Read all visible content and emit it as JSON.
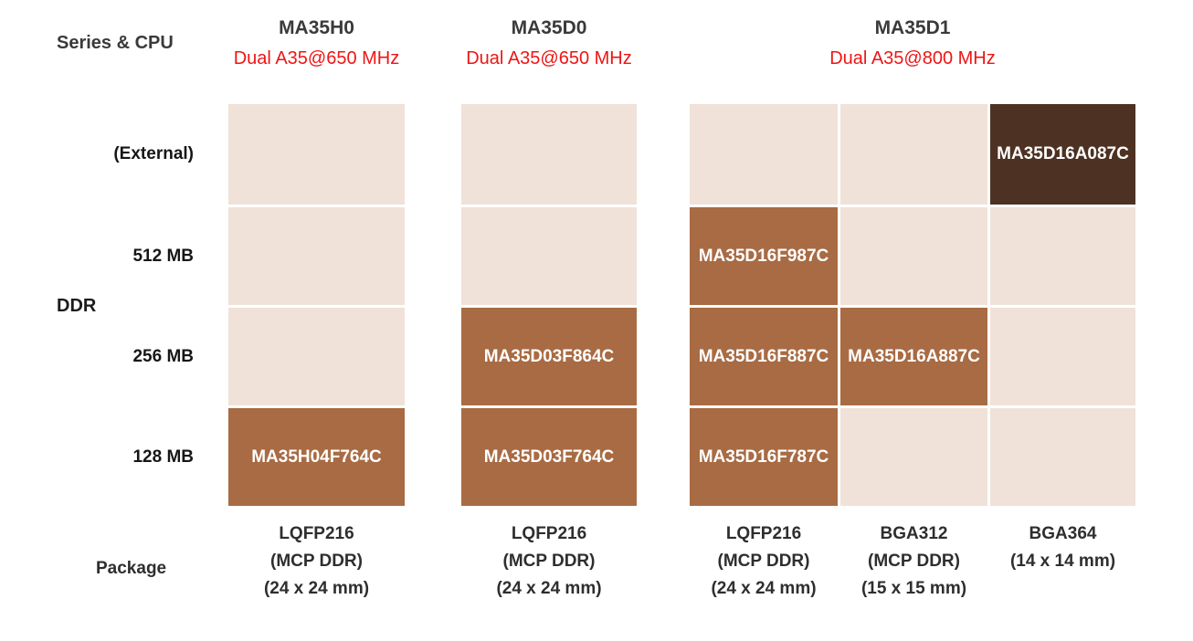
{
  "labels": {
    "series_cpu": "Series & CPU",
    "ddr": "DDR",
    "package": "Package",
    "rows": [
      "(External)",
      "512 MB",
      "256 MB",
      "128 MB"
    ]
  },
  "colors": {
    "cell_empty": "#f0e2d8",
    "cell_filled": "#a86b43",
    "cell_external_dark": "#4d3122",
    "cpu_accent_red": "#ee1515",
    "cell_text": "#ffffff",
    "label_text": "#2e2e2e"
  },
  "series": [
    {
      "name": "MA35H0",
      "cpu": "Dual A35@650 MHz"
    },
    {
      "name": "MA35D0",
      "cpu": "Dual A35@650 MHz"
    },
    {
      "name": "MA35D1",
      "cpu": "Dual A35@800 MHz"
    }
  ],
  "columns": [
    {
      "series": "MA35H0",
      "package": {
        "line1": "LQFP216",
        "line2": "(MCP DDR)",
        "line3": "(24 x 24 mm)"
      },
      "cells": [
        {
          "ddr": "(External)",
          "part": "",
          "state": "empty"
        },
        {
          "ddr": "512 MB",
          "part": "",
          "state": "empty"
        },
        {
          "ddr": "256 MB",
          "part": "",
          "state": "empty"
        },
        {
          "ddr": "128 MB",
          "part": "MA35H04F764C",
          "state": "filled"
        }
      ]
    },
    {
      "series": "MA35D0",
      "package": {
        "line1": "LQFP216",
        "line2": "(MCP DDR)",
        "line3": "(24 x 24 mm)"
      },
      "cells": [
        {
          "ddr": "(External)",
          "part": "",
          "state": "empty"
        },
        {
          "ddr": "512 MB",
          "part": "",
          "state": "empty"
        },
        {
          "ddr": "256 MB",
          "part": "MA35D03F864C",
          "state": "filled"
        },
        {
          "ddr": "128 MB",
          "part": "MA35D03F764C",
          "state": "filled"
        }
      ]
    },
    {
      "series": "MA35D1",
      "package": {
        "line1": "LQFP216",
        "line2": "(MCP DDR)",
        "line3": "(24 x 24 mm)"
      },
      "cells": [
        {
          "ddr": "(External)",
          "part": "",
          "state": "empty"
        },
        {
          "ddr": "512 MB",
          "part": "MA35D16F987C",
          "state": "filled"
        },
        {
          "ddr": "256 MB",
          "part": "MA35D16F887C",
          "state": "filled"
        },
        {
          "ddr": "128 MB",
          "part": "MA35D16F787C",
          "state": "filled"
        }
      ]
    },
    {
      "series": "MA35D1",
      "package": {
        "line1": "BGA312",
        "line2": "(MCP DDR)",
        "line3": "(15 x 15 mm)"
      },
      "cells": [
        {
          "ddr": "(External)",
          "part": "",
          "state": "empty"
        },
        {
          "ddr": "512 MB",
          "part": "",
          "state": "empty"
        },
        {
          "ddr": "256 MB",
          "part": "MA35D16A887C",
          "state": "filled"
        },
        {
          "ddr": "128 MB",
          "part": "",
          "state": "empty"
        }
      ]
    },
    {
      "series": "MA35D1",
      "package": {
        "line1": "BGA364",
        "line2": "(14 x 14 mm)",
        "line3": ""
      },
      "cells": [
        {
          "ddr": "(External)",
          "part": "MA35D16A087C",
          "state": "external"
        },
        {
          "ddr": "512 MB",
          "part": "",
          "state": "empty"
        },
        {
          "ddr": "256 MB",
          "part": "",
          "state": "empty"
        },
        {
          "ddr": "128 MB",
          "part": "",
          "state": "empty"
        }
      ]
    }
  ]
}
